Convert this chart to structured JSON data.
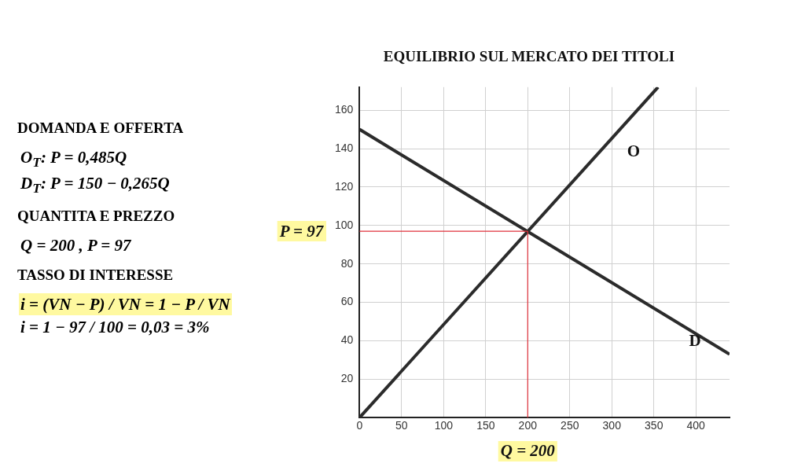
{
  "chart_data": [
    {
      "type": "other",
      "annotations": [
        "DOMANDA E OFFERTA",
        "O$_{T}$: P = 0,485Q",
        "D$_{T}$: P = 150 − 0,265Q",
        "QUANTITA E PREZZO",
        "Q = 200   , P = 97",
        "TASSO DI INTERESSE",
        "i = (VN − P) / VN = 1 − P / VN",
        "i = 1 − 97 / 100 = 0,03 = 3%"
      ]
    },
    {
      "type": "line",
      "title": "EQUILIBRIO SUL MERCATO DEI TITOLI",
      "xlim": [
        0,
        440
      ],
      "xticks": [
        0,
        50,
        100,
        150,
        200,
        250,
        300,
        350,
        400
      ],
      "ylim": [
        0,
        172
      ],
      "yticks": [
        20,
        40,
        60,
        80,
        100,
        120,
        140,
        160
      ],
      "grid": true,
      "line_style": "solid",
      "series": [
        {
          "name": "O",
          "color": "#2b2b2b",
          "x": [
            0,
            355
          ],
          "values": [
            0,
            172
          ]
        },
        {
          "name": "D",
          "color": "#2b2b2b",
          "x": [
            0,
            440
          ],
          "values": [
            150,
            33
          ]
        }
      ],
      "ref_lines": [
        {
          "axis": "y",
          "value": 97,
          "label": "P = 97",
          "color": "#e0303a"
        },
        {
          "axis": "x",
          "value": 200,
          "label": "Q = 200",
          "color": "#e0303a"
        }
      ]
    }
  ]
}
